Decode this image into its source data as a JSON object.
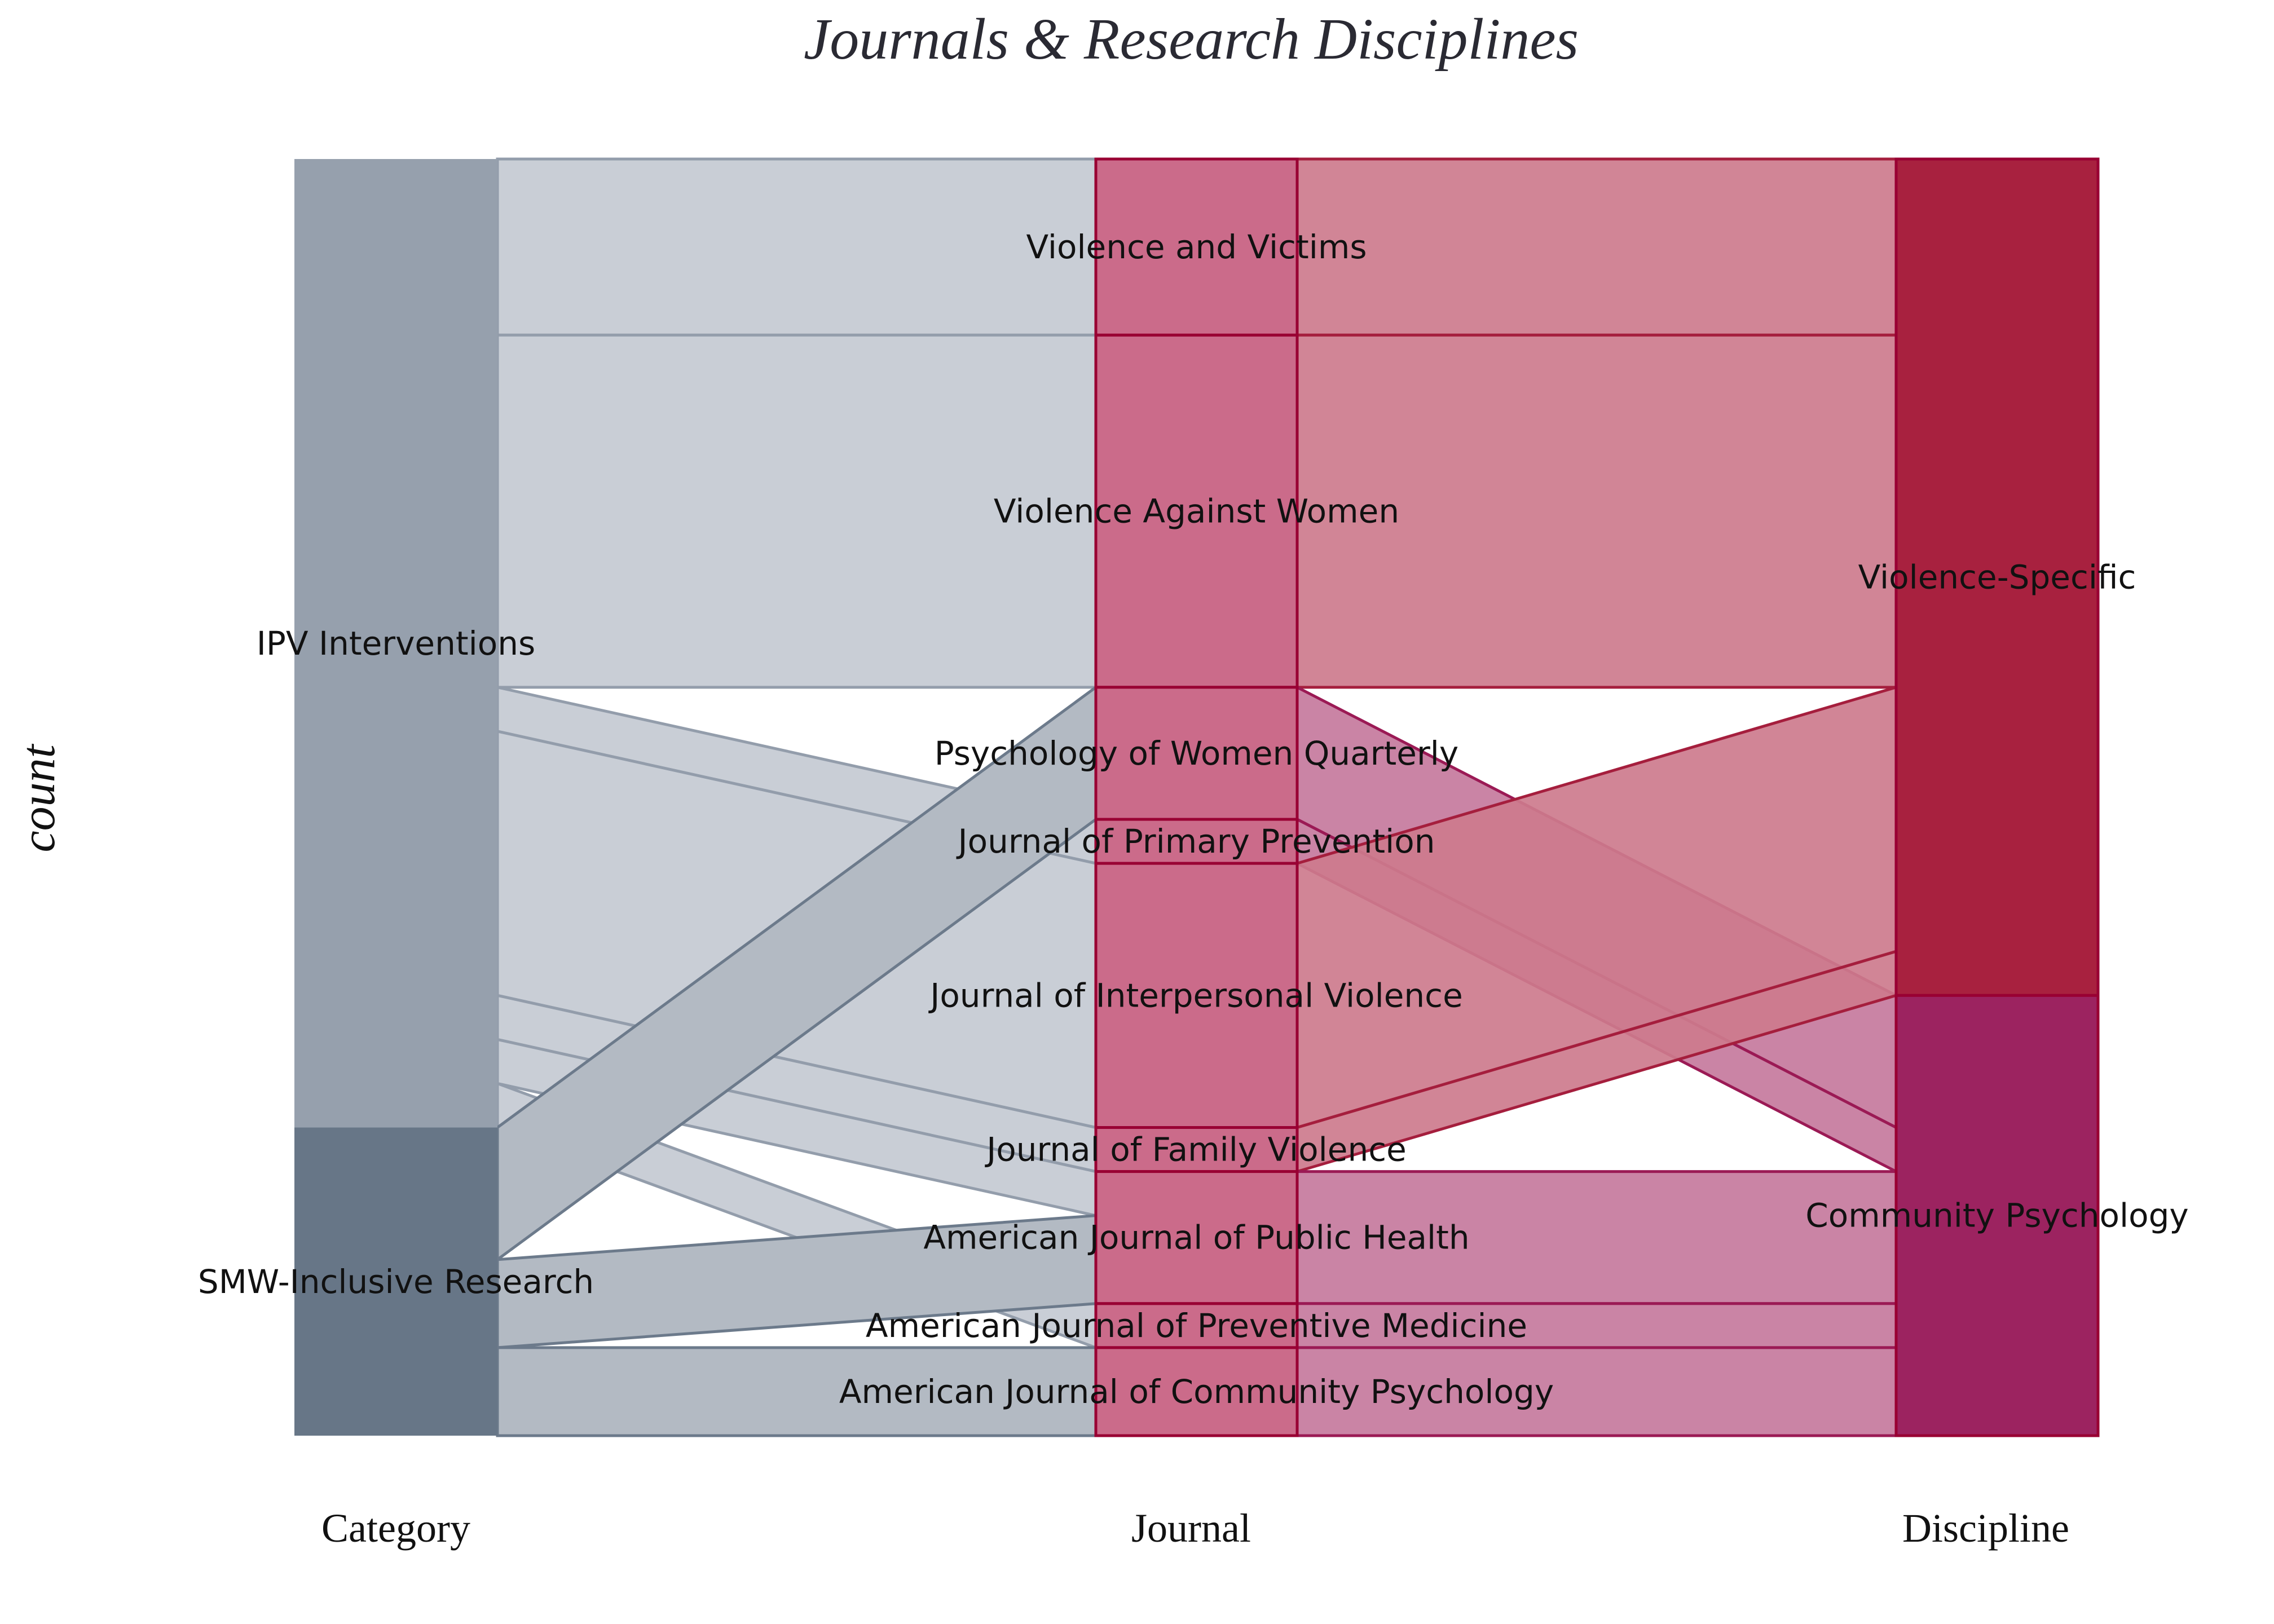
{
  "chart_data": {
    "type": "alluvial",
    "title": "Journals & Research Disciplines",
    "ylabel": "count",
    "axes": [
      "Category",
      "Journal",
      "Discipline"
    ],
    "total": 29,
    "nodes": {
      "Category": [
        {
          "name": "IPV Interventions",
          "count": 22
        },
        {
          "name": "SMW-Inclusive Research",
          "count": 7
        }
      ],
      "Journal": [
        {
          "name": "Violence and Victims",
          "count": 4
        },
        {
          "name": "Violence Against Women",
          "count": 8
        },
        {
          "name": "Psychology of Women Quarterly",
          "count": 3
        },
        {
          "name": "Journal of Primary Prevention",
          "count": 1
        },
        {
          "name": "Journal of Interpersonal Violence",
          "count": 6
        },
        {
          "name": "Journal of Family Violence",
          "count": 1
        },
        {
          "name": "American Journal of Public Health",
          "count": 3
        },
        {
          "name": "American Journal of Preventive Medicine",
          "count": 1
        },
        {
          "name": "American Journal of Community Psychology",
          "count": 2
        }
      ],
      "Discipline": [
        {
          "name": "Violence-Specific",
          "count": 19
        },
        {
          "name": "Community Psychology",
          "count": 10
        }
      ]
    },
    "flows_category_journal": [
      {
        "from": "IPV Interventions",
        "to": "Violence and Victims",
        "value": 4
      },
      {
        "from": "IPV Interventions",
        "to": "Violence Against Women",
        "value": 8
      },
      {
        "from": "IPV Interventions",
        "to": "Journal of Primary Prevention",
        "value": 1
      },
      {
        "from": "IPV Interventions",
        "to": "Journal of Interpersonal Violence",
        "value": 6
      },
      {
        "from": "IPV Interventions",
        "to": "Journal of Family Violence",
        "value": 1
      },
      {
        "from": "IPV Interventions",
        "to": "American Journal of Public Health",
        "value": 1
      },
      {
        "from": "IPV Interventions",
        "to": "American Journal of Preventive Medicine",
        "value": 1
      },
      {
        "from": "SMW-Inclusive Research",
        "to": "Psychology of Women Quarterly",
        "value": 3
      },
      {
        "from": "SMW-Inclusive Research",
        "to": "American Journal of Public Health",
        "value": 2
      },
      {
        "from": "SMW-Inclusive Research",
        "to": "American Journal of Community Psychology",
        "value": 2
      }
    ],
    "flows_journal_discipline": [
      {
        "from": "Violence and Victims",
        "to": "Violence-Specific",
        "value": 4
      },
      {
        "from": "Violence Against Women",
        "to": "Violence-Specific",
        "value": 8
      },
      {
        "from": "Psychology of Women Quarterly",
        "to": "Community Psychology",
        "value": 3
      },
      {
        "from": "Journal of Primary Prevention",
        "to": "Community Psychology",
        "value": 1
      },
      {
        "from": "Journal of Interpersonal Violence",
        "to": "Violence-Specific",
        "value": 6
      },
      {
        "from": "Journal of Family Violence",
        "to": "Violence-Specific",
        "value": 1
      },
      {
        "from": "American Journal of Public Health",
        "to": "Community Psychology",
        "value": 3
      },
      {
        "from": "American Journal of Preventive Medicine",
        "to": "Community Psychology",
        "value": 1
      },
      {
        "from": "American Journal of Community Psychology",
        "to": "Community Psychology",
        "value": 2
      }
    ],
    "colors": {
      "IPV Interventions": "#96a0ad",
      "SMW-Inclusive Research": "#677687",
      "Violence-Specific": "#a8213f",
      "Community Psychology": "#9c2360",
      "journal_node": "#c4567a",
      "flow_ipv": "#c9ced6",
      "flow_smw": "#b3bac3",
      "flow_violence": "#cd7b8d",
      "flow_community": "#c67a9d",
      "stroke_left": "#6c7a8b",
      "stroke_right": "#990033"
    }
  }
}
